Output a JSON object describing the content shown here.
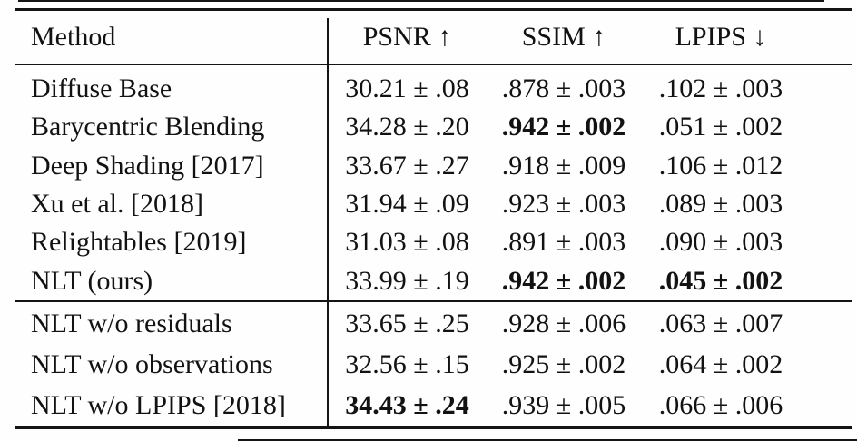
{
  "page": {
    "background": "#fefefe",
    "text_color": "#121212",
    "rule_color": "#141414"
  },
  "table": {
    "header": {
      "method": "Method",
      "psnr": "PSNR ↑",
      "ssim": "SSIM ↑",
      "lpips": "LPIPS ↓"
    },
    "rows": [
      {
        "method": "Diffuse Base",
        "psnr": "30.21 ± .08",
        "ssim": ".878 ± .003",
        "lpips": ".102 ± .003",
        "psnr_bold": false,
        "ssim_bold": false,
        "lpips_bold": false
      },
      {
        "method": "Barycentric Blending",
        "psnr": "34.28 ± .20",
        "ssim": ".942 ± .002",
        "lpips": ".051 ± .002",
        "psnr_bold": false,
        "ssim_bold": true,
        "lpips_bold": false
      },
      {
        "method": "Deep Shading [2017]",
        "psnr": "33.67 ± .27",
        "ssim": ".918 ± .009",
        "lpips": ".106 ± .012",
        "psnr_bold": false,
        "ssim_bold": false,
        "lpips_bold": false
      },
      {
        "method": "Xu et al. [2018]",
        "psnr": "31.94 ± .09",
        "ssim": ".923 ± .003",
        "lpips": ".089 ± .003",
        "psnr_bold": false,
        "ssim_bold": false,
        "lpips_bold": false
      },
      {
        "method": "Relightables [2019]",
        "psnr": "31.03 ± .08",
        "ssim": ".891 ± .003",
        "lpips": ".090 ± .003",
        "psnr_bold": false,
        "ssim_bold": false,
        "lpips_bold": false
      },
      {
        "method": "NLT (ours)",
        "psnr": "33.99 ± .19",
        "ssim": ".942 ± .002",
        "lpips": ".045 ± .002",
        "psnr_bold": false,
        "ssim_bold": true,
        "lpips_bold": true
      },
      {
        "method": "NLT w/o residuals",
        "psnr": "33.65 ± .25",
        "ssim": ".928 ± .006",
        "lpips": ".063 ± .007",
        "psnr_bold": false,
        "ssim_bold": false,
        "lpips_bold": false
      },
      {
        "method": "NLT w/o observations",
        "psnr": "32.56 ± .15",
        "ssim": ".925 ± .002",
        "lpips": ".064 ± .002",
        "psnr_bold": false,
        "ssim_bold": false,
        "lpips_bold": false
      },
      {
        "method": "NLT w/o LPIPS [2018]",
        "psnr": "34.43 ± .24",
        "ssim": ".939 ± .005",
        "lpips": ".066 ± .006",
        "psnr_bold": true,
        "ssim_bold": false,
        "lpips_bold": false
      }
    ]
  }
}
